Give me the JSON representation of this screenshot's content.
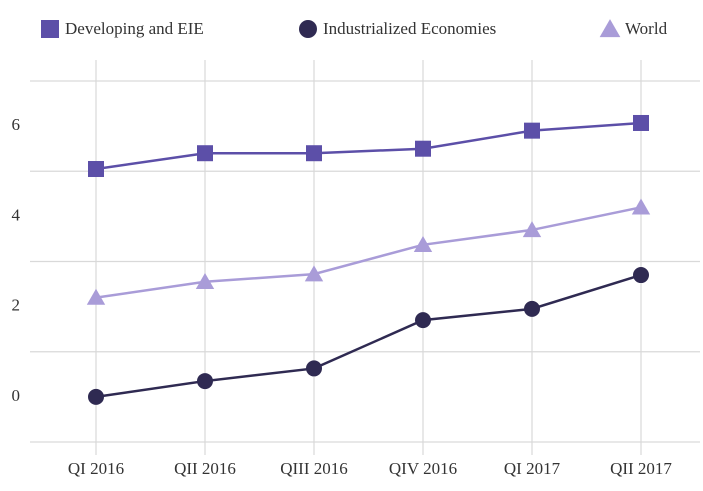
{
  "chart_data": {
    "type": "line",
    "categories": [
      "QI 2016",
      "QII 2016",
      "QIII 2016",
      "QIV 2016",
      "QI 2017",
      "QII 2017"
    ],
    "series": [
      {
        "name": "Developing and EIE",
        "color": "#5c4fa8",
        "marker": "square",
        "values": [
          5.05,
          5.4,
          5.4,
          5.5,
          5.9,
          6.07
        ]
      },
      {
        "name": "Industrialized Economies",
        "color": "#2f2a52",
        "marker": "circle",
        "values": [
          0,
          0.35,
          0.63,
          1.7,
          1.95,
          2.7
        ]
      },
      {
        "name": "World",
        "color": "#a99cd8",
        "marker": "triangle",
        "values": [
          2.2,
          2.55,
          2.72,
          3.37,
          3.7,
          4.2
        ]
      }
    ],
    "ylim": [
      -1.2,
      7.2
    ],
    "yticks": [
      0,
      2,
      4,
      6
    ],
    "grid_yticks": [
      -1,
      1,
      3,
      5,
      7
    ],
    "grid": true,
    "legend": "top"
  }
}
